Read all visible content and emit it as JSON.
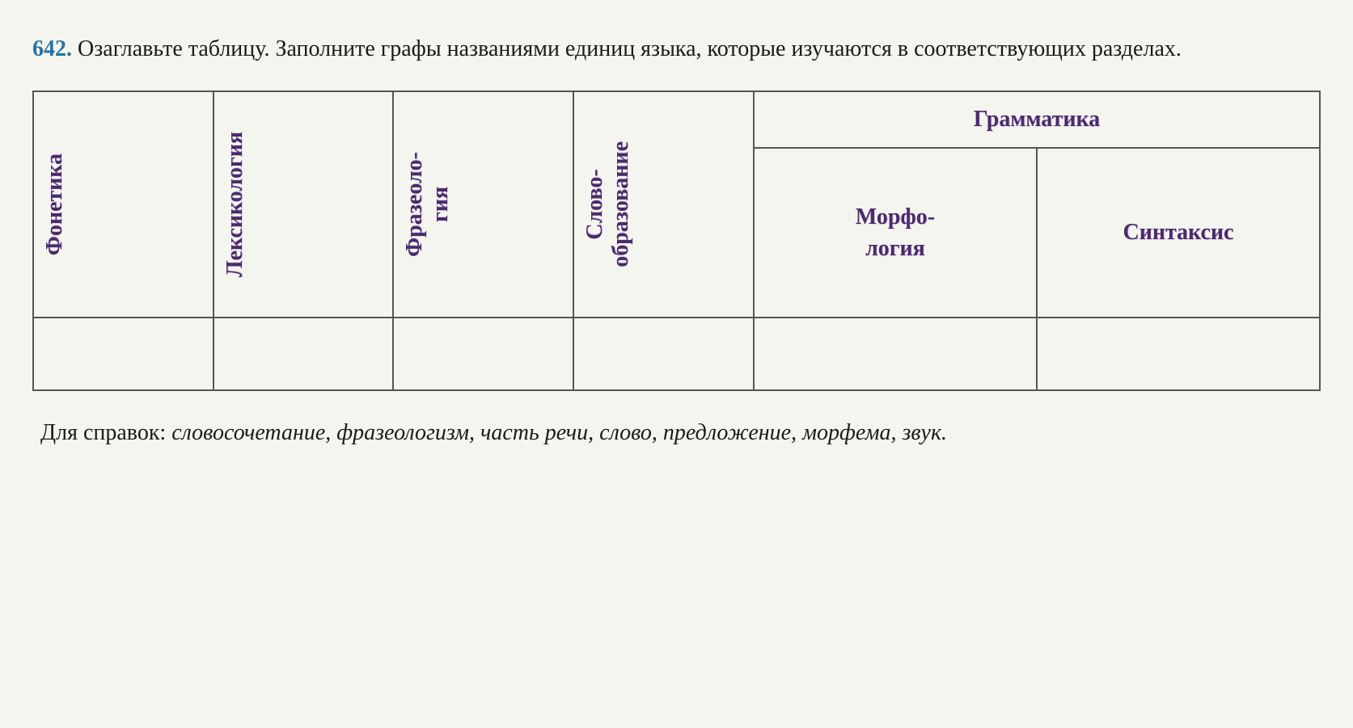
{
  "exercise": {
    "number": "642.",
    "instruction": "Озаглавьте таблицу. Заполните графы названиями единиц языка, которые изучаются в соответствующих разделах."
  },
  "table": {
    "columns": [
      {
        "label": "Фонетика",
        "type": "vertical"
      },
      {
        "label": "Лексикология",
        "type": "vertical"
      },
      {
        "label_line1": "Фразеоло-",
        "label_line2": "гия",
        "type": "vertical-multi"
      },
      {
        "label_line1": "Слово-",
        "label_line2": "образование",
        "type": "vertical-multi"
      },
      {
        "label": "Грамматика",
        "type": "group",
        "sub": [
          {
            "label_line1": "Морфо-",
            "label_line2": "логия"
          },
          {
            "label": "Синтаксис"
          }
        ]
      }
    ],
    "header_color": "#4a2b6b",
    "border_color": "#555555",
    "background_color": "#f5f5f0",
    "vertical_fontsize": 28,
    "horizontal_fontsize": 28
  },
  "reference": {
    "label": "Для справок: ",
    "items": "словосочетание, фразеологизм, часть речи, слово, предложение, морфема, звук."
  }
}
